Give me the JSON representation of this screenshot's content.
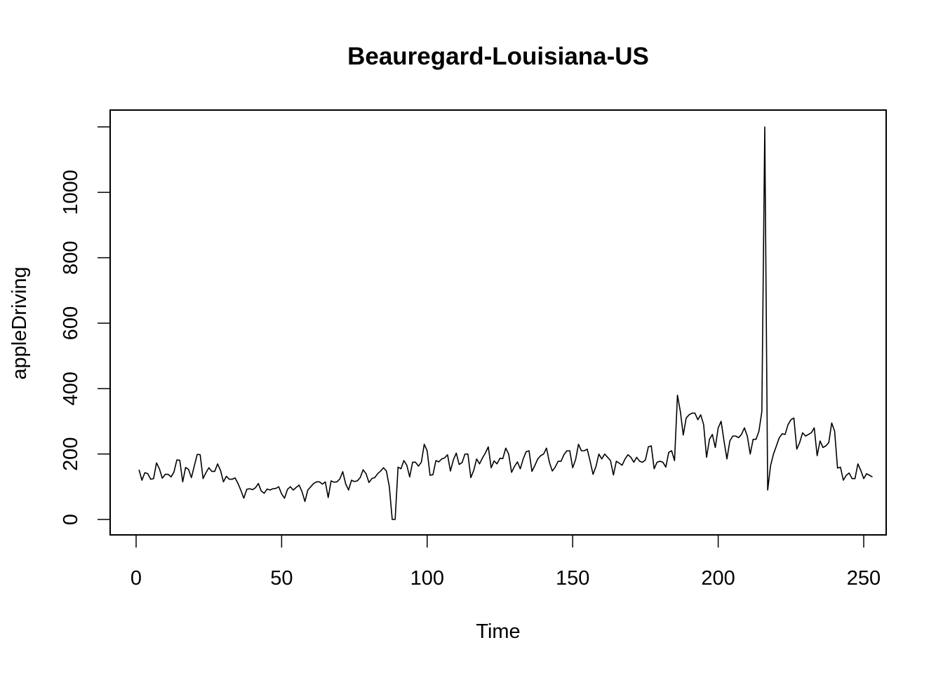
{
  "chart_data": {
    "type": "line",
    "title": "Beauregard-Louisiana-US",
    "xlabel": "Time",
    "ylabel": "appleDriving",
    "xlim": [
      0,
      250
    ],
    "ylim": [
      0,
      1200
    ],
    "x_ticks": [
      "0",
      "50",
      "100",
      "150",
      "200",
      "250"
    ],
    "y_ticks": [
      "0",
      "200",
      "400",
      "600",
      "800",
      "1000"
    ],
    "grid": false,
    "legend": "none",
    "line_color": "#000000",
    "x_start": 1,
    "series": [
      {
        "values": [
          152,
          120,
          143,
          140,
          123,
          125,
          173,
          155,
          126,
          138,
          138,
          130,
          145,
          182,
          181,
          115,
          159,
          153,
          128,
          164,
          199,
          198,
          125,
          143,
          158,
          147,
          147,
          170,
          150,
          115,
          132,
          123,
          123,
          127,
          110,
          89,
          65,
          92,
          94,
          91,
          97,
          110,
          87,
          80,
          93,
          90,
          94,
          95,
          100,
          78,
          65,
          92,
          100,
          90,
          98,
          105,
          85,
          55,
          90,
          100,
          110,
          115,
          115,
          108,
          115,
          67,
          118,
          114,
          115,
          124,
          146,
          109,
          90,
          120,
          116,
          118,
          128,
          152,
          140,
          113,
          125,
          128,
          140,
          148,
          158,
          148,
          100,
          0,
          0,
          160,
          155,
          180,
          166,
          130,
          175,
          175,
          163,
          175,
          230,
          210,
          135,
          137,
          180,
          176,
          185,
          188,
          198,
          148,
          182,
          203,
          168,
          174,
          200,
          200,
          128,
          150,
          185,
          170,
          188,
          203,
          222,
          158,
          179,
          170,
          187,
          186,
          218,
          200,
          144,
          162,
          176,
          155,
          185,
          207,
          210,
          147,
          165,
          185,
          195,
          200,
          218,
          175,
          148,
          160,
          178,
          178,
          198,
          210,
          210,
          158,
          183,
          230,
          210,
          210,
          215,
          178,
          138,
          162,
          200,
          185,
          200,
          190,
          180,
          136,
          178,
          172,
          166,
          185,
          198,
          190,
          175,
          190,
          178,
          175,
          182,
          222,
          225,
          155,
          175,
          178,
          175,
          160,
          205,
          210,
          180,
          380,
          330,
          258,
          310,
          320,
          325,
          325,
          305,
          320,
          290,
          190,
          245,
          260,
          220,
          280,
          300,
          240,
          185,
          240,
          255,
          255,
          250,
          260,
          280,
          255,
          200,
          245,
          245,
          270,
          330,
          1200,
          90,
          165,
          200,
          225,
          250,
          262,
          260,
          290,
          305,
          310,
          215,
          235,
          265,
          255,
          260,
          265,
          280,
          195,
          240,
          220,
          225,
          235,
          295,
          270,
          157,
          160,
          120,
          135,
          142,
          125,
          125,
          170,
          150,
          125,
          140,
          135,
          130
        ]
      }
    ]
  }
}
